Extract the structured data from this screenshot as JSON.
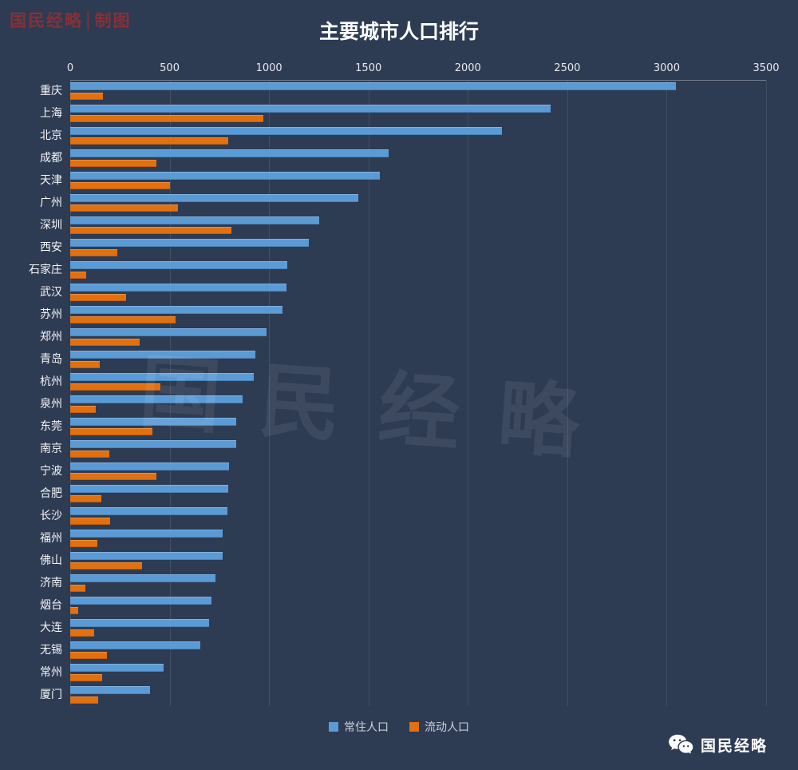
{
  "header": {
    "brand_watermark": "国民经略│制图",
    "title": "主要城市人口排行"
  },
  "watermarks": {
    "center": "国民经略",
    "footer_brand": "国民经略"
  },
  "colors": {
    "background": "#2d3b53",
    "resident_blue": "#5b9bd5",
    "floating_orange": "#e2700e",
    "brand_red": "#8a3136",
    "gridline": "rgba(255,255,255,0.10)"
  },
  "chart_data": {
    "type": "bar",
    "orientation": "horizontal",
    "title": "主要城市人口排行",
    "xlim": [
      0,
      3500
    ],
    "x_ticks": [
      0,
      500,
      1000,
      1500,
      2000,
      2500,
      3000,
      3500
    ],
    "grid": true,
    "legend_position": "bottom",
    "categories": [
      "重庆",
      "上海",
      "北京",
      "成都",
      "天津",
      "广州",
      "深圳",
      "西安",
      "石家庄",
      "武汉",
      "苏州",
      "郑州",
      "青岛",
      "杭州",
      "泉州",
      "东莞",
      "南京",
      "宁波",
      "合肥",
      "长沙",
      "福州",
      "佛山",
      "济南",
      "烟台",
      "大连",
      "无锡",
      "常州",
      "厦门"
    ],
    "series": [
      {
        "name": "常住人口",
        "color": "#5b9bd5",
        "values": [
          3048,
          2418,
          2171,
          1600,
          1557,
          1450,
          1253,
          1200,
          1090,
          1089,
          1068,
          988,
          930,
          925,
          865,
          834,
          833,
          800,
          796,
          791,
          766,
          765,
          732,
          709,
          699,
          655,
          471,
          401
        ]
      },
      {
        "name": "流动人口",
        "color": "#e2700e",
        "values": [
          165,
          970,
          795,
          435,
          500,
          540,
          810,
          235,
          80,
          280,
          530,
          350,
          150,
          455,
          130,
          415,
          197,
          435,
          155,
          200,
          135,
          360,
          75,
          40,
          120,
          185,
          160,
          140
        ]
      }
    ]
  }
}
